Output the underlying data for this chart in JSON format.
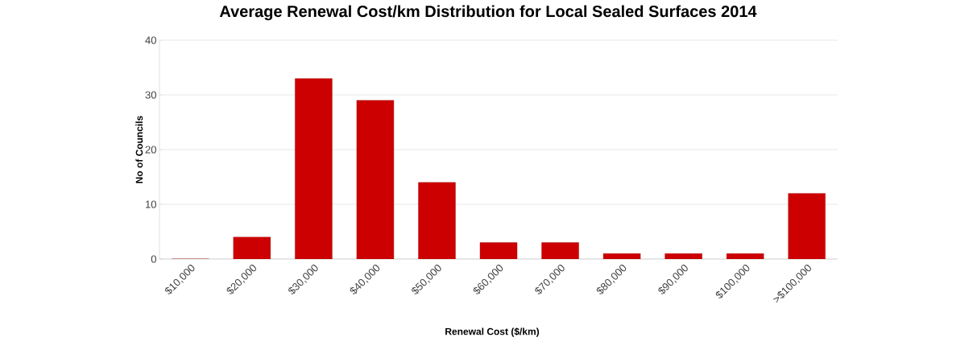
{
  "chart_data": {
    "type": "bar",
    "title": "Average Renewal Cost/km Distribution for Local Sealed Surfaces 2014",
    "xlabel": "Renewal Cost ($/km)",
    "ylabel": "No of Councils",
    "categories": [
      "$10,000",
      "$20,000",
      "$30,000",
      "$40,000",
      "$50,000",
      "$60,000",
      "$70,000",
      "$80,000",
      "$90,000",
      "$100,000",
      ">$100,000"
    ],
    "values": [
      0,
      4,
      33,
      29,
      14,
      3,
      3,
      1,
      1,
      1,
      12
    ],
    "color": "#cc0000",
    "ylim": [
      0,
      40
    ],
    "yticks": [
      0,
      10,
      20,
      30,
      40
    ],
    "grid": "y"
  }
}
